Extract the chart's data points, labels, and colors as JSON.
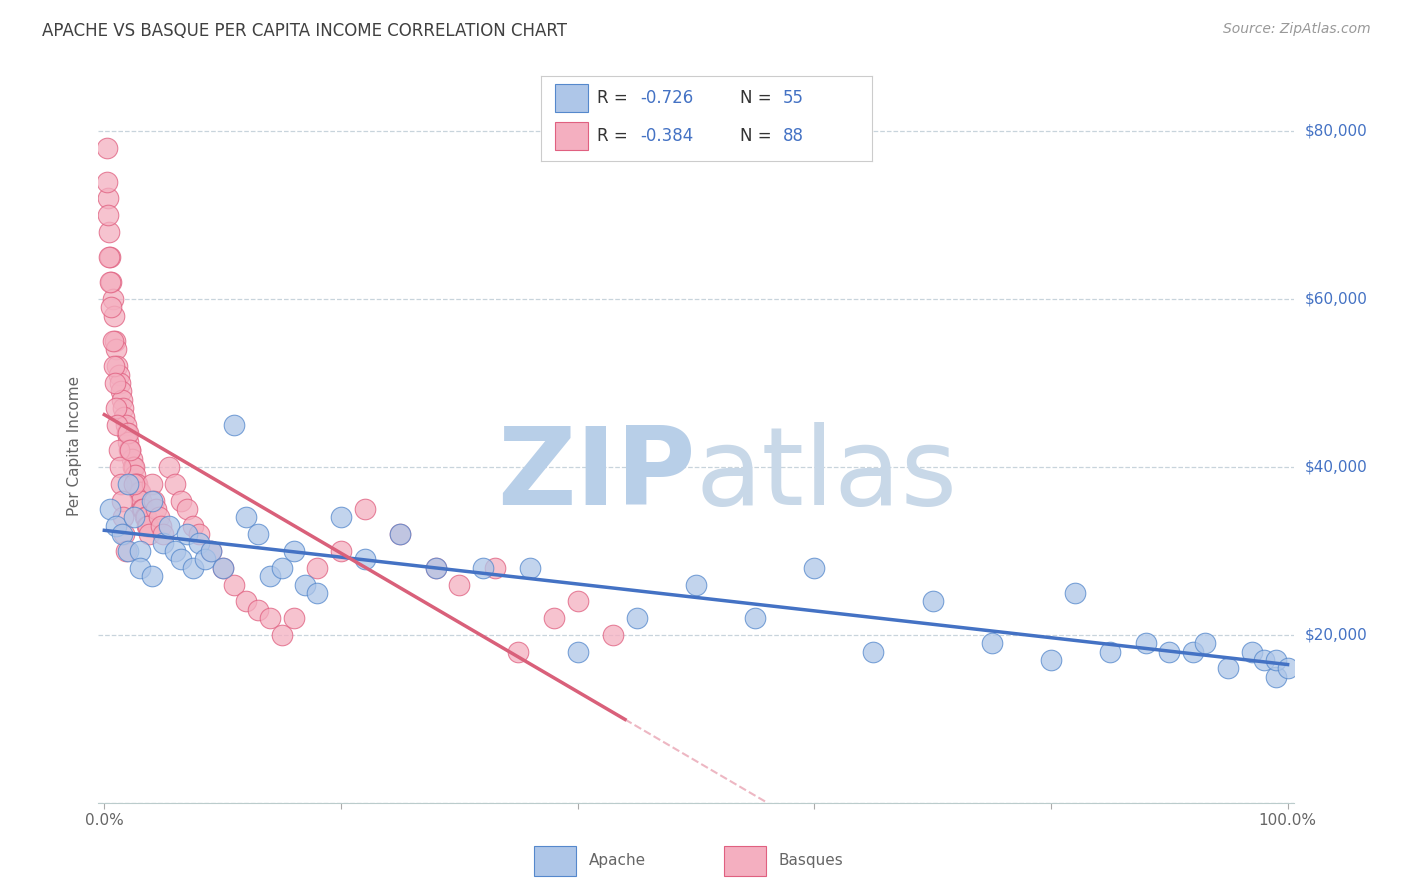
{
  "title": "APACHE VS BASQUE PER CAPITA INCOME CORRELATION CHART",
  "source": "Source: ZipAtlas.com",
  "ylabel": "Per Capita Income",
  "yticks": [
    0,
    20000,
    40000,
    60000,
    80000
  ],
  "ytick_labels": [
    "",
    "$20,000",
    "$40,000",
    "$60,000",
    "$80,000"
  ],
  "ymin": 0,
  "ymax": 85000,
  "xmin": -0.005,
  "xmax": 1.005,
  "apache_color": "#aec6e8",
  "basque_color": "#f4afc0",
  "apache_edge_color": "#5588cc",
  "basque_edge_color": "#e06080",
  "apache_line_color": "#4472c4",
  "basque_line_color": "#d9607a",
  "background": "#ffffff",
  "grid_color": "#c8d4dc",
  "title_color": "#404040",
  "legend_text_color": "#333333",
  "legend_value_color": "#4472c4",
  "source_color": "#999999",
  "bottom_label_color": "#666666",
  "apache_x": [
    0.005,
    0.01,
    0.015,
    0.02,
    0.02,
    0.025,
    0.03,
    0.03,
    0.04,
    0.04,
    0.05,
    0.055,
    0.06,
    0.065,
    0.07,
    0.075,
    0.08,
    0.085,
    0.09,
    0.1,
    0.11,
    0.12,
    0.13,
    0.14,
    0.15,
    0.16,
    0.17,
    0.18,
    0.2,
    0.22,
    0.25,
    0.28,
    0.32,
    0.36,
    0.4,
    0.45,
    0.5,
    0.55,
    0.6,
    0.65,
    0.7,
    0.75,
    0.8,
    0.85,
    0.9,
    0.92,
    0.95,
    0.97,
    0.98,
    0.99,
    0.99,
    1.0,
    0.93,
    0.88,
    0.82
  ],
  "apache_y": [
    35000,
    33000,
    32000,
    38000,
    30000,
    34000,
    30000,
    28000,
    36000,
    27000,
    31000,
    33000,
    30000,
    29000,
    32000,
    28000,
    31000,
    29000,
    30000,
    28000,
    45000,
    34000,
    32000,
    27000,
    28000,
    30000,
    26000,
    25000,
    34000,
    29000,
    32000,
    28000,
    28000,
    28000,
    18000,
    22000,
    26000,
    22000,
    28000,
    18000,
    24000,
    19000,
    17000,
    18000,
    18000,
    18000,
    16000,
    18000,
    17000,
    15000,
    17000,
    16000,
    19000,
    19000,
    25000
  ],
  "basque_x": [
    0.002,
    0.003,
    0.004,
    0.005,
    0.006,
    0.007,
    0.008,
    0.009,
    0.01,
    0.011,
    0.012,
    0.013,
    0.014,
    0.015,
    0.016,
    0.017,
    0.018,
    0.019,
    0.02,
    0.021,
    0.022,
    0.023,
    0.024,
    0.025,
    0.026,
    0.027,
    0.028,
    0.029,
    0.03,
    0.031,
    0.032,
    0.033,
    0.034,
    0.035,
    0.036,
    0.037,
    0.038,
    0.04,
    0.042,
    0.044,
    0.046,
    0.048,
    0.05,
    0.055,
    0.06,
    0.065,
    0.07,
    0.075,
    0.08,
    0.09,
    0.1,
    0.11,
    0.12,
    0.13,
    0.14,
    0.15,
    0.16,
    0.18,
    0.2,
    0.22,
    0.25,
    0.28,
    0.3,
    0.33,
    0.35,
    0.38,
    0.4,
    0.43,
    0.002,
    0.003,
    0.004,
    0.005,
    0.006,
    0.007,
    0.008,
    0.009,
    0.01,
    0.011,
    0.012,
    0.013,
    0.014,
    0.015,
    0.016,
    0.017,
    0.018,
    0.02,
    0.022,
    0.025
  ],
  "basque_y": [
    78000,
    72000,
    68000,
    65000,
    62000,
    60000,
    58000,
    55000,
    54000,
    52000,
    51000,
    50000,
    49000,
    48000,
    47000,
    46000,
    45000,
    44000,
    43000,
    42000,
    42000,
    41000,
    40000,
    40000,
    39000,
    38000,
    38000,
    37000,
    37000,
    36000,
    35000,
    35000,
    34000,
    34000,
    33000,
    33000,
    32000,
    38000,
    36000,
    35000,
    34000,
    33000,
    32000,
    40000,
    38000,
    36000,
    35000,
    33000,
    32000,
    30000,
    28000,
    26000,
    24000,
    23000,
    22000,
    20000,
    22000,
    28000,
    30000,
    35000,
    32000,
    28000,
    26000,
    28000,
    18000,
    22000,
    24000,
    20000,
    74000,
    70000,
    65000,
    62000,
    59000,
    55000,
    52000,
    50000,
    47000,
    45000,
    42000,
    40000,
    38000,
    36000,
    34000,
    32000,
    30000,
    44000,
    42000,
    38000
  ]
}
